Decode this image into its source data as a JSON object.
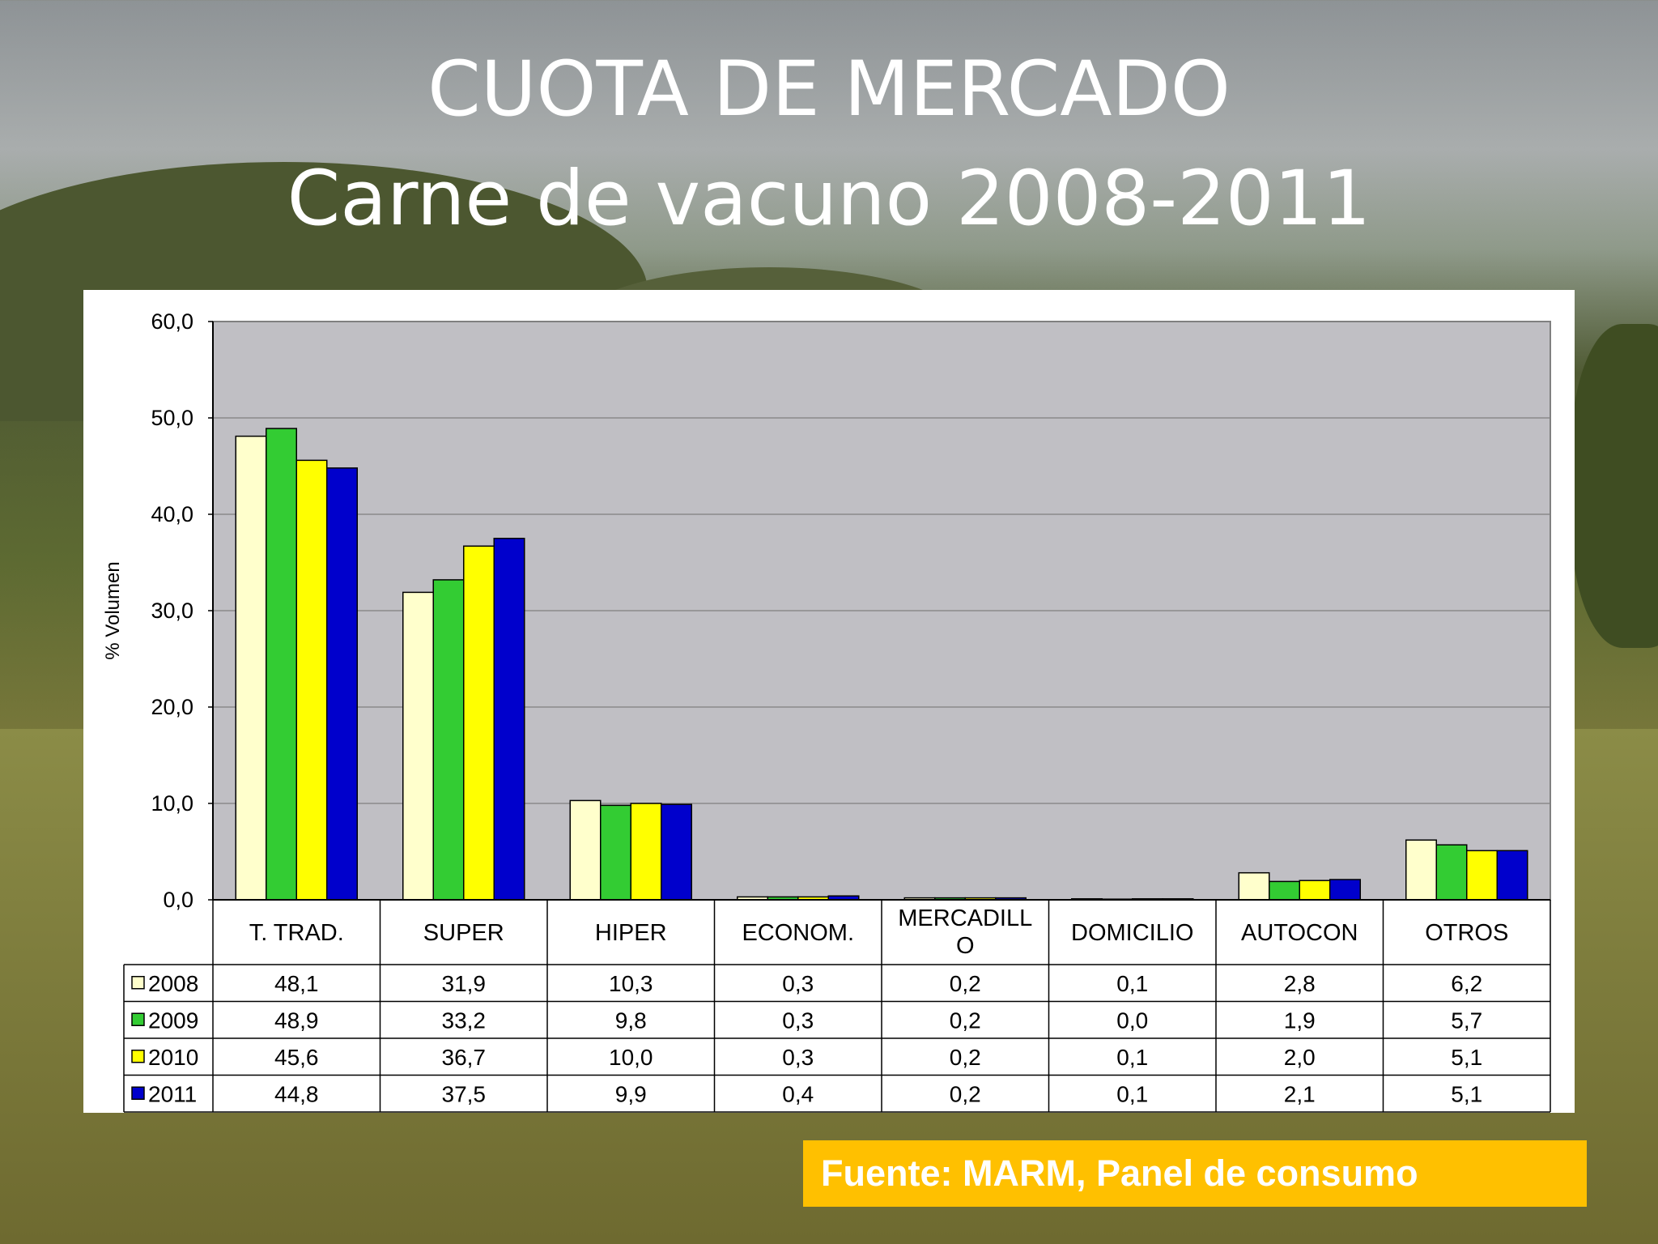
{
  "slide": {
    "title_line1": "CUOTA DE MERCADO",
    "title_line2": "Carne de vacuno 2008-2011",
    "source": "Fuente: MARM, Panel de consumo"
  },
  "chart_data": {
    "type": "bar",
    "title": "",
    "ylabel": "% Volumen",
    "ylim": [
      0,
      60
    ],
    "yticks": [
      "0,0",
      "10,0",
      "20,0",
      "30,0",
      "40,0",
      "50,0",
      "60,0"
    ],
    "yticks_values": [
      0,
      10,
      20,
      30,
      40,
      50,
      60
    ],
    "grid": true,
    "legend": "data-table",
    "categories": [
      "T. TRAD.",
      "SUPER",
      "HIPER",
      "ECONOM.",
      "MERCADILL O",
      "DOMICILIO",
      "AUTOCON",
      "OTROS"
    ],
    "category_lines": [
      [
        "T. TRAD."
      ],
      [
        "SUPER"
      ],
      [
        "HIPER"
      ],
      [
        "ECONOM."
      ],
      [
        "MERCADILL",
        "O"
      ],
      [
        "DOMICILIO"
      ],
      [
        "AUTOCON"
      ],
      [
        "OTROS"
      ]
    ],
    "series": [
      {
        "name": "2008",
        "color": "#ffffcc",
        "values": [
          48.1,
          31.9,
          10.3,
          0.3,
          0.2,
          0.1,
          2.8,
          6.2
        ],
        "labels": [
          "48,1",
          "31,9",
          "10,3",
          "0,3",
          "0,2",
          "0,1",
          "2,8",
          "6,2"
        ]
      },
      {
        "name": "2009",
        "color": "#33cc33",
        "values": [
          48.9,
          33.2,
          9.8,
          0.3,
          0.2,
          0.0,
          1.9,
          5.7
        ],
        "labels": [
          "48,9",
          "33,2",
          "9,8",
          "0,3",
          "0,2",
          "0,0",
          "1,9",
          "5,7"
        ]
      },
      {
        "name": "2010",
        "color": "#ffff00",
        "values": [
          45.6,
          36.7,
          10.0,
          0.3,
          0.2,
          0.1,
          2.0,
          5.1
        ],
        "labels": [
          "45,6",
          "36,7",
          "10,0",
          "0,3",
          "0,2",
          "0,1",
          "2,0",
          "5,1"
        ]
      },
      {
        "name": "2011",
        "color": "#0000cc",
        "values": [
          44.8,
          37.5,
          9.9,
          0.4,
          0.2,
          0.1,
          2.1,
          5.1
        ],
        "labels": [
          "44,8",
          "37,5",
          "9,9",
          "0,4",
          "0,2",
          "0,1",
          "2,1",
          "5,1"
        ]
      }
    ],
    "colors": {
      "plot_bg": "#c0bfc4",
      "grid": "#7f7f7f",
      "bar_edge": "#000000"
    }
  }
}
